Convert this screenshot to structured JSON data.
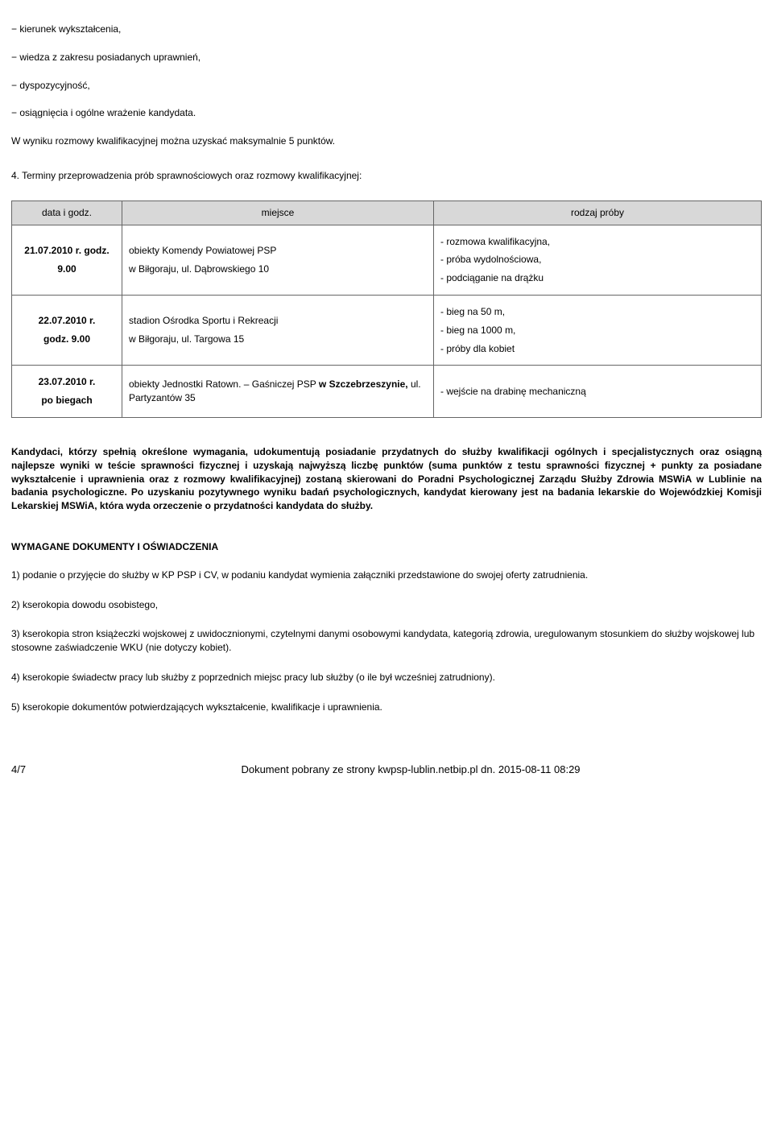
{
  "intro_items": [
    "− kierunek wykształcenia,",
    "− wiedza z zakresu posiadanych uprawnień,",
    "− dyspozycyjność,",
    "− osiągnięcia i ogólne wrażenie kandydata."
  ],
  "intro_line": "W wyniku rozmowy kwalifikacyjnej można uzyskać maksymalnie 5 punktów.",
  "point4": "4. Terminy przeprowadzenia prób sprawnościowych oraz rozmowy kwalifikacyjnej:",
  "table": {
    "headers": [
      "data i godz.",
      "miejsce",
      "rodzaj próby"
    ],
    "rows": [
      {
        "date_lines": [
          "21.07.2010 r. godz.",
          "9.00"
        ],
        "place_lines": [
          "obiekty Komendy Powiatowej PSP",
          "w Biłgoraju, ul. Dąbrowskiego 10"
        ],
        "kind_lines": [
          "- rozmowa kwalifikacyjna,",
          "- próba wydolnościowa,",
          "- podciąganie na drążku"
        ]
      },
      {
        "date_lines": [
          "22.07.2010 r.",
          "godz. 9.00"
        ],
        "place_lines": [
          "stadion Ośrodka Sportu i Rekreacji",
          "w Biłgoraju, ul. Targowa 15"
        ],
        "kind_lines": [
          "- bieg na 50 m,",
          "- bieg na 1000 m,",
          "- próby dla kobiet"
        ]
      },
      {
        "date_lines": [
          "23.07.2010 r.",
          "po biegach"
        ],
        "place_lines_html": "obiekty Jednostki Ratown. – Gaśniczej PSP <b>w Szczebrzeszynie,</b> ul. Partyzantów 35",
        "kind_lines": [
          "- wejście na drabinę mechaniczną"
        ]
      }
    ]
  },
  "big_para": "Kandydaci, którzy spełnią określone wymagania, udokumentują posiadanie przydatnych do służby kwalifikacji ogólnych i specjalistycznych oraz osiągną najlepsze wyniki w teście sprawności fizycznej i uzyskają najwyższą liczbę punktów (suma punktów z testu sprawności fizycznej + punkty za posiadane wykształcenie i uprawnienia oraz z rozmowy kwalifikacyjnej) zostaną skierowani do Poradni Psychologicznej Zarządu Służby Zdrowia MSWiA w Lublinie na badania psychologiczne. Po uzyskaniu pozytywnego wyniku badań psychologicznych, kandydat kierowany jest na badania lekarskie do Wojewódzkiej Komisji Lekarskiej MSWiA, która wyda orzeczenie o przydatności kandydata do służby.",
  "req_heading": "WYMAGANE DOKUMENTY I OŚWIADCZENIA",
  "req_items": [
    "1) podanie o przyjęcie do służby w KP PSP i CV, w podaniu kandydat wymienia załączniki przedstawione do swojej oferty zatrudnienia.",
    "2) kserokopia dowodu osobistego,",
    "3) kserokopia stron książeczki wojskowej z uwidocznionymi, czytelnymi danymi osobowymi kandydata, kategorią zdrowia, uregulowanym stosunkiem do służby wojskowej lub stosowne zaświadczenie WKU (nie dotyczy kobiet).",
    "4) kserokopie świadectw pracy lub służby z poprzednich miejsc pracy lub służby (o ile był wcześniej zatrudniony).",
    "5) kserokopie dokumentów potwierdzających wykształcenie, kwalifikacje i uprawnienia."
  ],
  "footer": {
    "page": "4/7",
    "source": "Dokument pobrany ze strony kwpsp-lublin.netbip.pl dn. 2015-08-11 08:29"
  }
}
